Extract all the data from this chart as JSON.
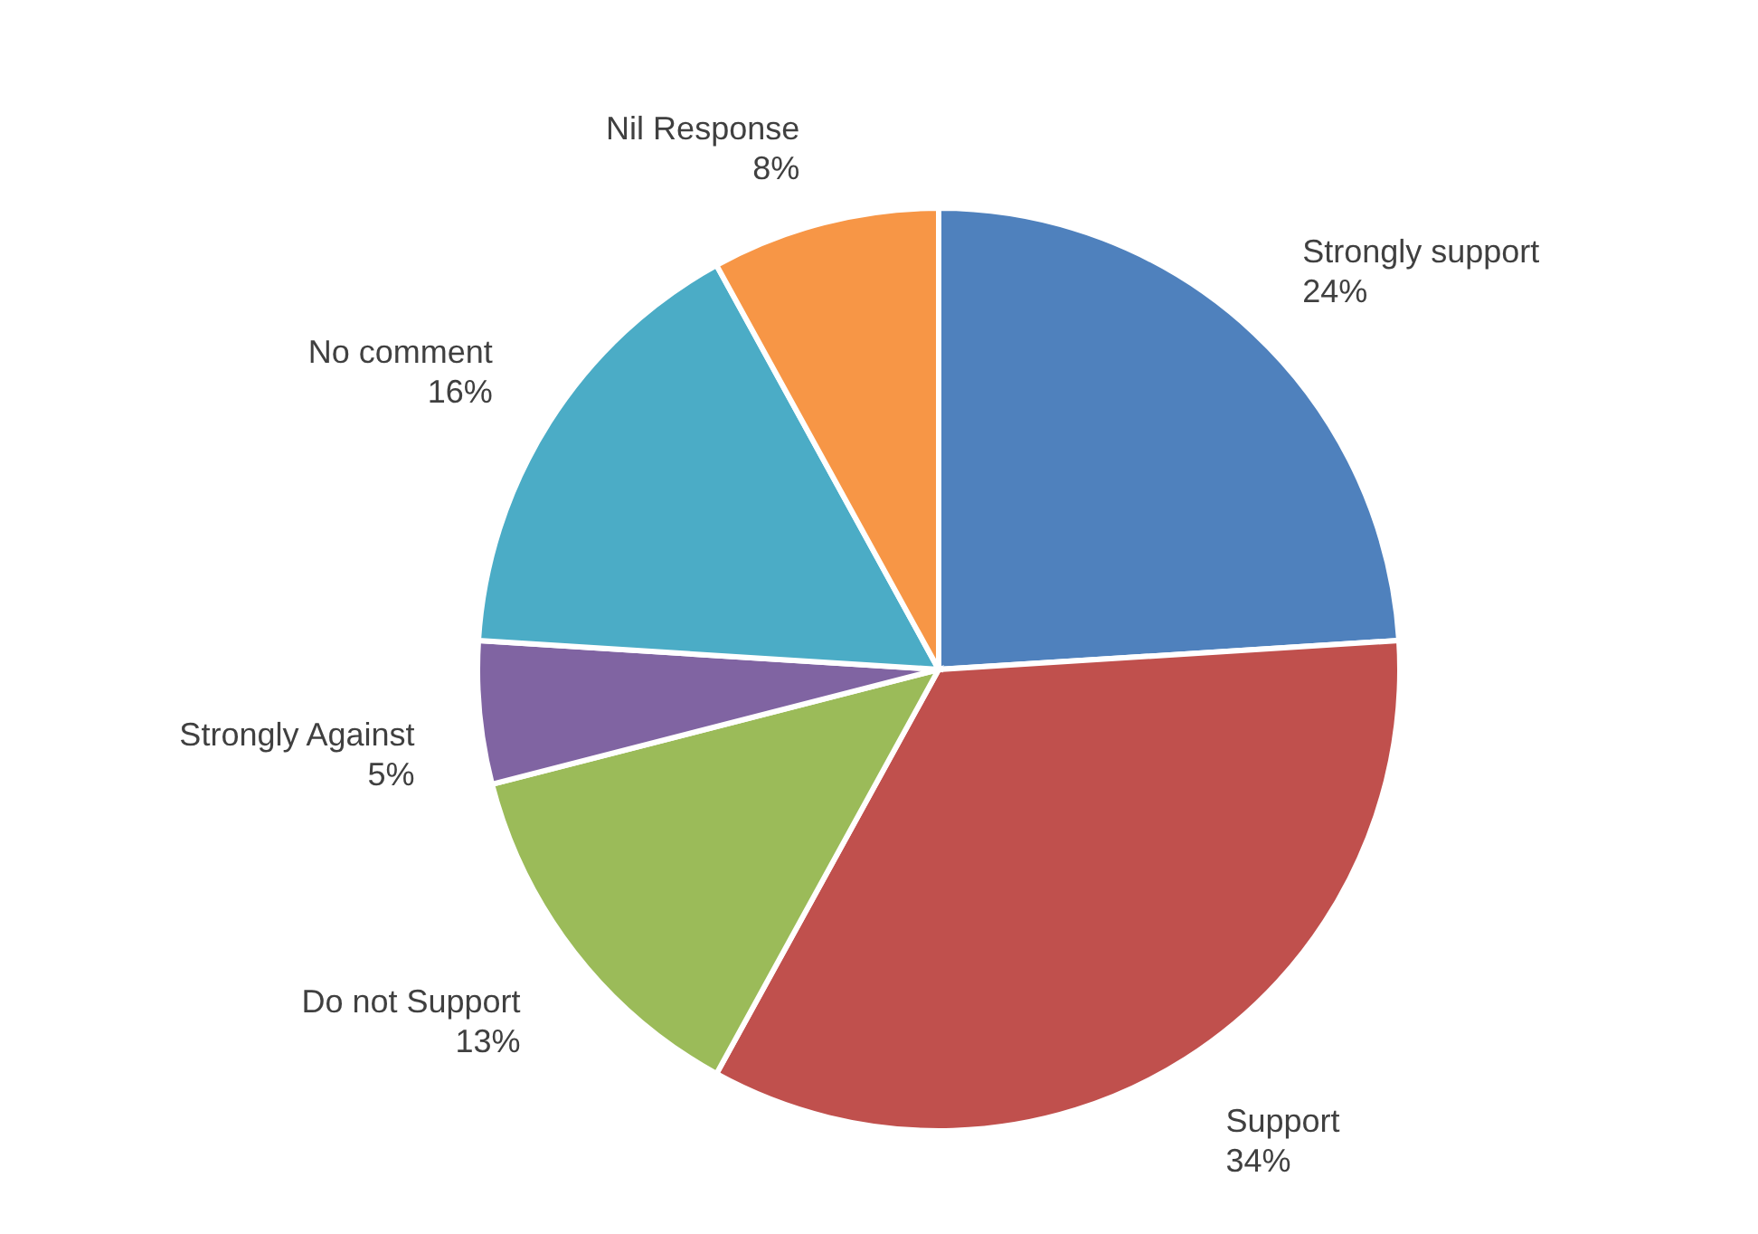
{
  "chart_data": {
    "type": "pie",
    "categories": [
      "Strongly support",
      "Support",
      "Do not Support",
      "Strongly Against",
      "No comment",
      "Nil Response"
    ],
    "values": [
      24,
      34,
      13,
      5,
      16,
      8
    ],
    "value_labels": [
      "24%",
      "34%",
      "13%",
      "5%",
      "16%",
      "8%"
    ],
    "colors": [
      "#4f81bd",
      "#c0504d",
      "#9bbb59",
      "#8064a2",
      "#4bacc6",
      "#f79646"
    ]
  }
}
